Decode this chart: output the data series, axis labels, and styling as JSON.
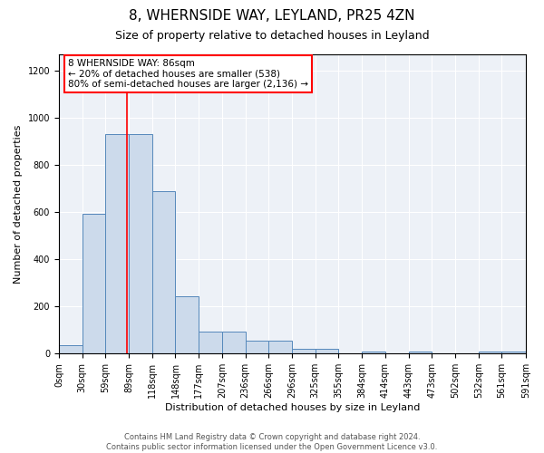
{
  "title": "8, WHERNSIDE WAY, LEYLAND, PR25 4ZN",
  "subtitle": "Size of property relative to detached houses in Leyland",
  "xlabel": "Distribution of detached houses by size in Leyland",
  "ylabel": "Number of detached properties",
  "bin_edges": [
    0,
    29.5,
    59,
    88.5,
    118,
    147.5,
    177,
    206.5,
    236,
    265.5,
    295,
    324.5,
    354,
    383.5,
    413,
    442.5,
    472,
    501.5,
    531,
    560.5,
    591
  ],
  "bar_heights": [
    35,
    595,
    930,
    930,
    690,
    245,
    95,
    95,
    55,
    55,
    20,
    20,
    0,
    10,
    0,
    10,
    0,
    0,
    10,
    10
  ],
  "bar_color": "#ccdaeb",
  "bar_edge_color": "#5588bb",
  "red_line_x": 86,
  "ylim": [
    0,
    1270
  ],
  "yticks": [
    0,
    200,
    400,
    600,
    800,
    1000,
    1200
  ],
  "xtick_labels": [
    "0sqm",
    "30sqm",
    "59sqm",
    "89sqm",
    "118sqm",
    "148sqm",
    "177sqm",
    "207sqm",
    "236sqm",
    "266sqm",
    "296sqm",
    "325sqm",
    "355sqm",
    "384sqm",
    "414sqm",
    "443sqm",
    "473sqm",
    "502sqm",
    "532sqm",
    "561sqm",
    "591sqm"
  ],
  "annotation_text": "8 WHERNSIDE WAY: 86sqm\n← 20% of detached houses are smaller (538)\n80% of semi-detached houses are larger (2,136) →",
  "footer_text": "Contains HM Land Registry data © Crown copyright and database right 2024.\nContains public sector information licensed under the Open Government Licence v3.0.",
  "background_color": "#edf1f7",
  "grid_color": "#ffffff",
  "title_fontsize": 11,
  "subtitle_fontsize": 9,
  "label_fontsize": 8,
  "tick_fontsize": 7,
  "annotation_fontsize": 7.5,
  "footer_fontsize": 6
}
